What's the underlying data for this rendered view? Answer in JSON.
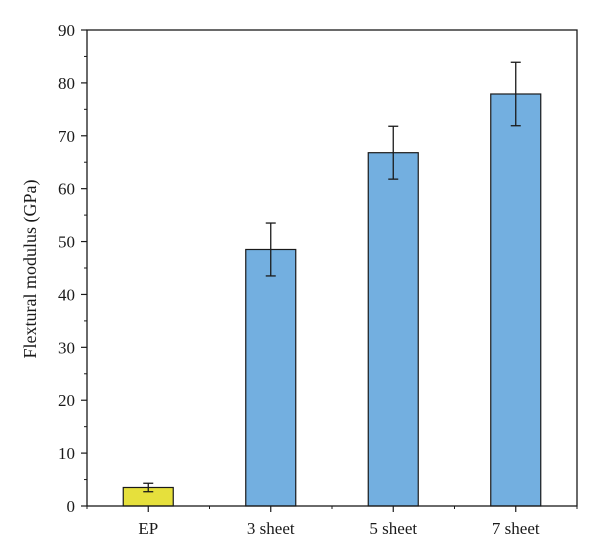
{
  "chart_data": {
    "type": "bar",
    "title": "",
    "xlabel": "",
    "ylabel": "Flextural modulus (GPa)",
    "categories": [
      "EP",
      "3 sheet",
      "5 sheet",
      "7 sheet"
    ],
    "values": [
      3.5,
      48.5,
      66.8,
      77.9
    ],
    "error": [
      0.8,
      5.0,
      5.0,
      6.0
    ],
    "ylim": [
      0,
      90
    ],
    "yticks": [
      0,
      10,
      20,
      30,
      40,
      50,
      60,
      70,
      80,
      90
    ],
    "grid": false,
    "legend": "none",
    "bar_colors": [
      "#e6e03c",
      "#73afe0",
      "#73afe0",
      "#73afe0"
    ],
    "bar_edge_color": "#1a1a1a"
  }
}
